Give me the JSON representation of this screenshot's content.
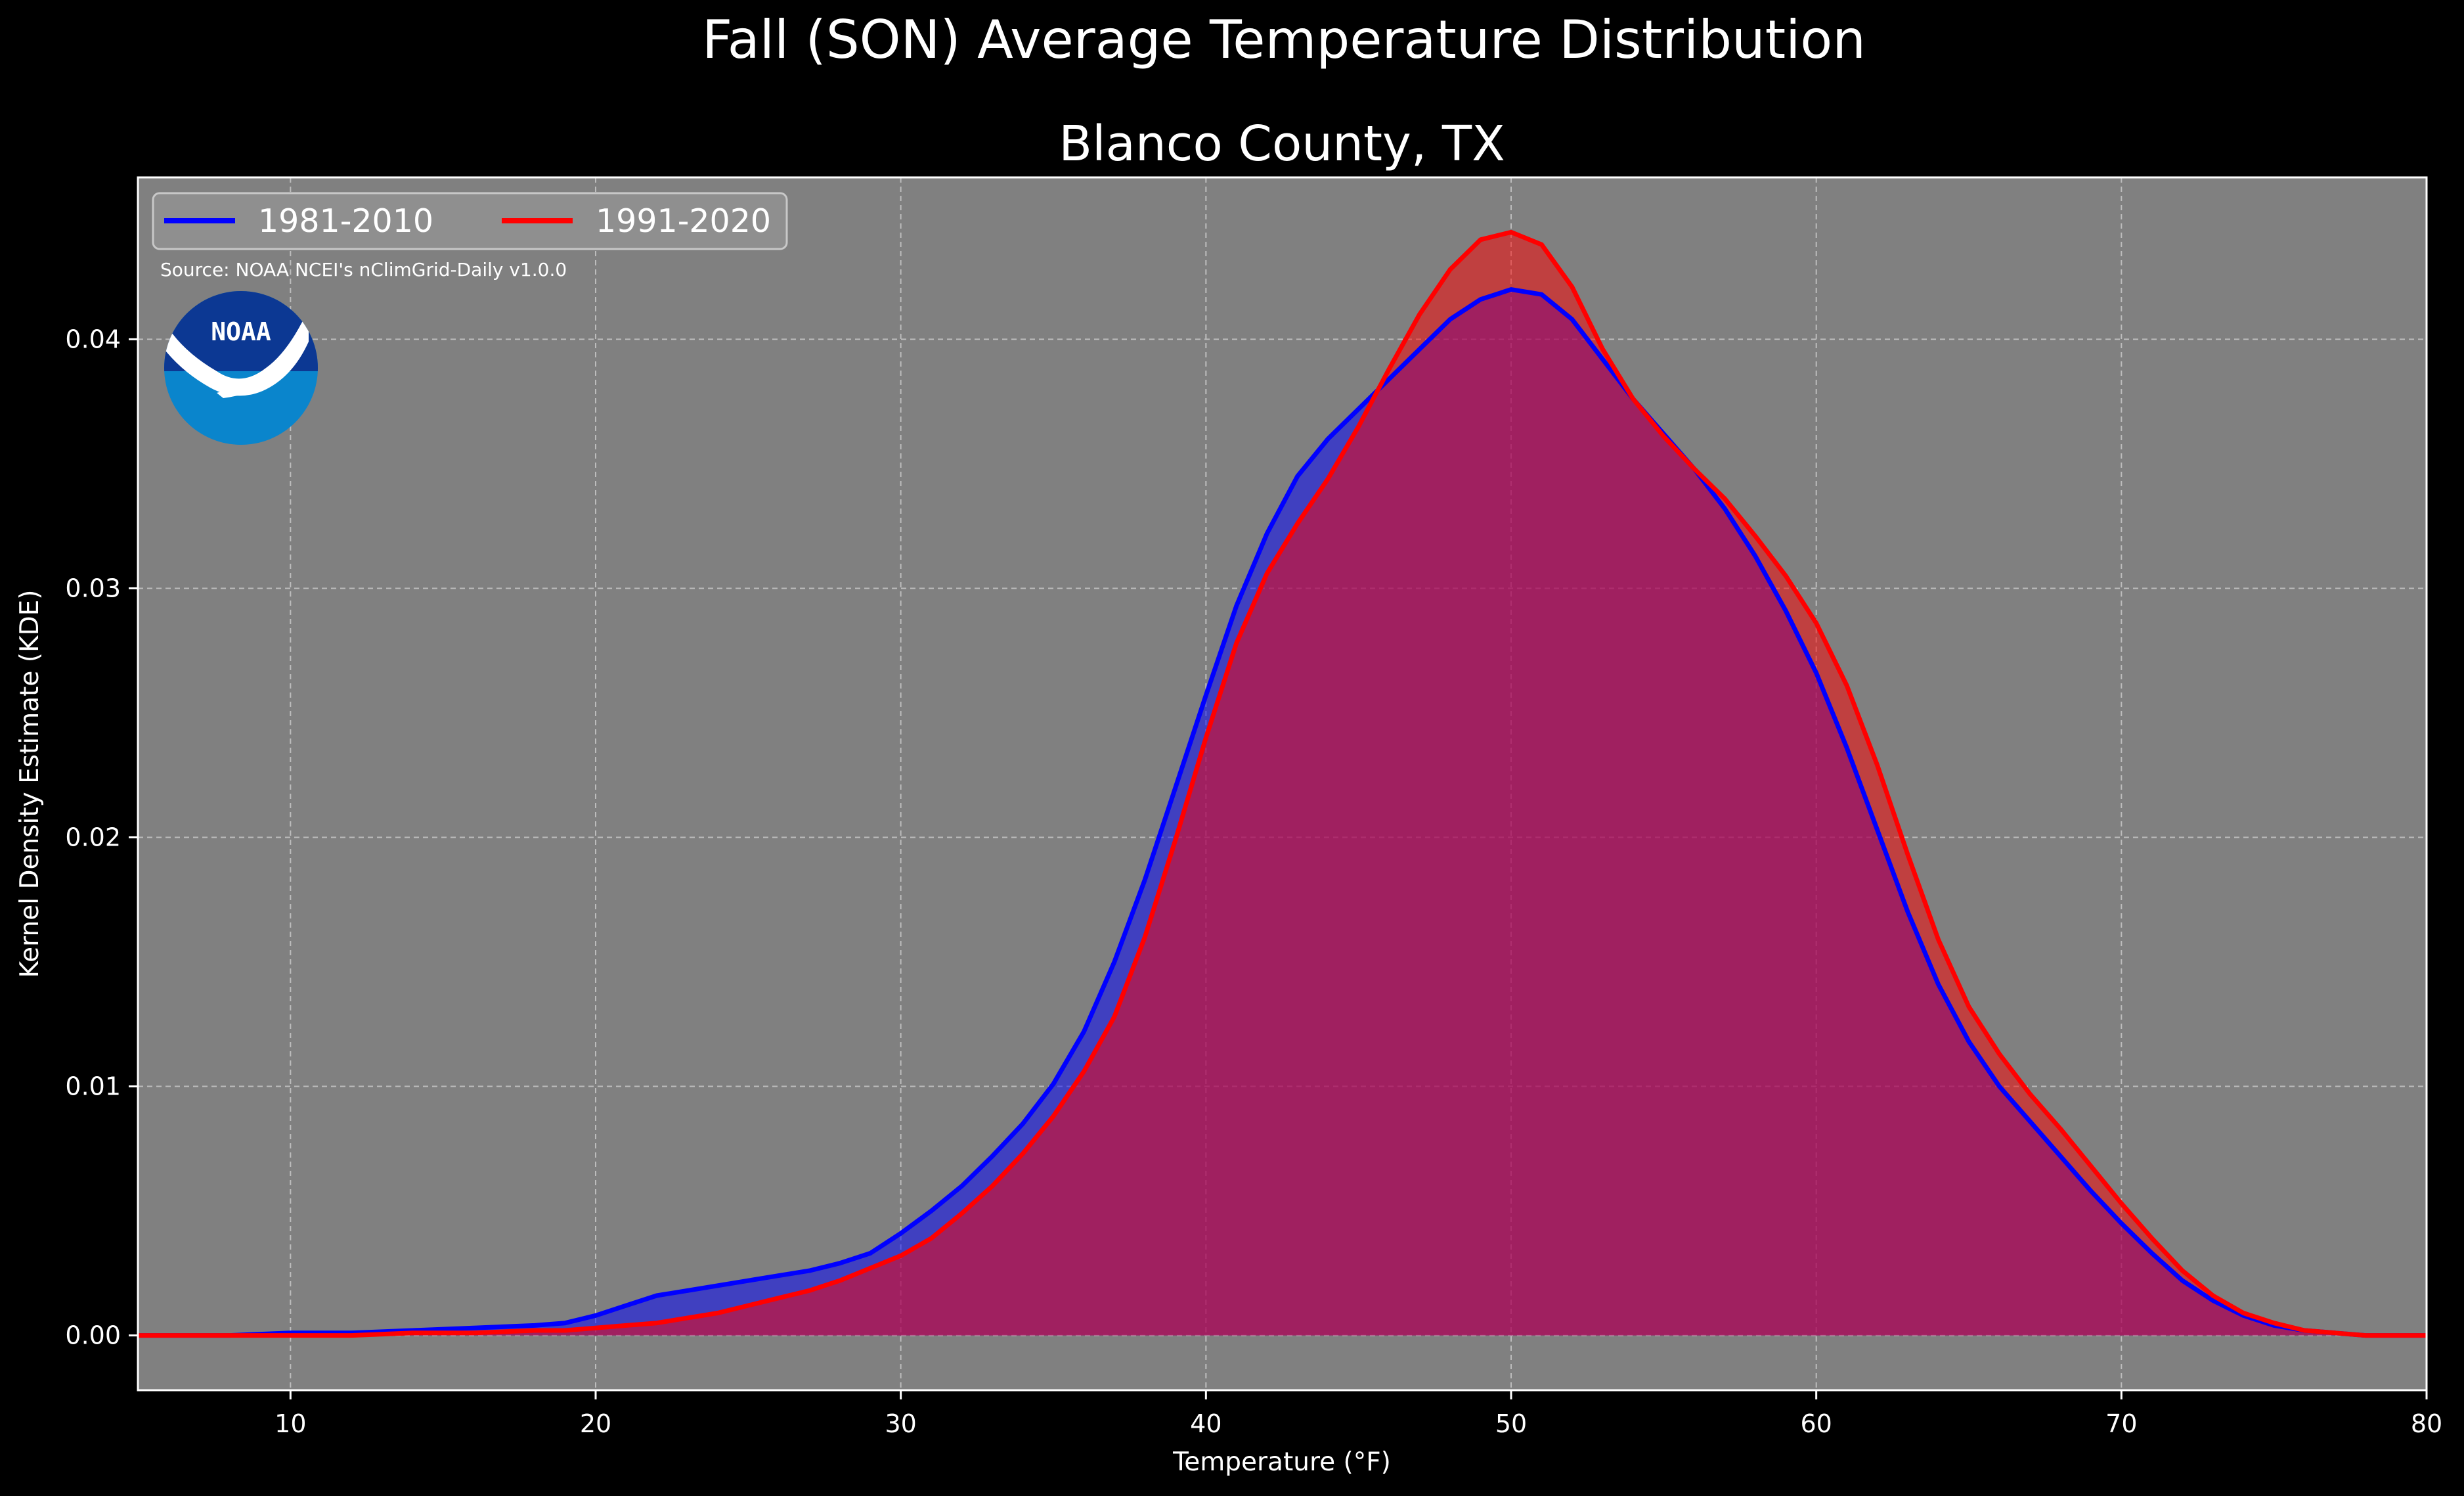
{
  "chart_data": {
    "type": "area",
    "suptitle": "Fall (SON) Average Temperature Distribution",
    "title": "Blanco County, TX",
    "xlabel": "Temperature ($^\\circ$F)",
    "xlabel_display": "Temperature (°F)",
    "ylabel": "Kernel Density Estimate (KDE)",
    "xlim": [
      5,
      80
    ],
    "ylim": [
      -0.0022,
      0.0465
    ],
    "xticks": [
      10,
      20,
      30,
      40,
      50,
      60,
      70,
      80
    ],
    "yticks": [
      0.0,
      0.01,
      0.02,
      0.03,
      0.04
    ],
    "ytick_labels": [
      "0.00",
      "0.01",
      "0.02",
      "0.03",
      "0.04"
    ],
    "grid": true,
    "legend_position": "upper-left",
    "source": "Source: NOAA NCEI's nClimGrid-Daily v1.0.0",
    "logo_text": "NOAA",
    "colors": {
      "figure_bg": "#000000",
      "axes_bg": "#808080",
      "series_1": "#0000ff",
      "series_2": "#ff0000"
    },
    "x": [
      5,
      8,
      10,
      12,
      14,
      16,
      18,
      19,
      20,
      21,
      22,
      23,
      24,
      25,
      26,
      27,
      28,
      29,
      30,
      31,
      32,
      33,
      34,
      35,
      36,
      37,
      38,
      39,
      40,
      41,
      42,
      43,
      44,
      45,
      46,
      47,
      48,
      49,
      50,
      51,
      52,
      53,
      54,
      55,
      56,
      57,
      58,
      59,
      60,
      61,
      62,
      63,
      64,
      65,
      66,
      67,
      68,
      69,
      70,
      71,
      72,
      73,
      74,
      75,
      76,
      77,
      78,
      79,
      80
    ],
    "series": [
      {
        "name": "1981-2010",
        "color": "#0000ff",
        "values": [
          0.0,
          0.0,
          0.0001,
          0.0001,
          0.0002,
          0.0003,
          0.0004,
          0.0005,
          0.0008,
          0.0012,
          0.0016,
          0.0018,
          0.002,
          0.0022,
          0.0024,
          0.0026,
          0.0029,
          0.0033,
          0.0041,
          0.005,
          0.006,
          0.0072,
          0.0085,
          0.0101,
          0.0122,
          0.015,
          0.0183,
          0.022,
          0.0257,
          0.0293,
          0.0322,
          0.0345,
          0.036,
          0.0372,
          0.0384,
          0.0396,
          0.0408,
          0.0416,
          0.042,
          0.0418,
          0.0408,
          0.0392,
          0.0376,
          0.0362,
          0.0348,
          0.0332,
          0.0313,
          0.0291,
          0.0266,
          0.0236,
          0.0203,
          0.017,
          0.0141,
          0.0118,
          0.01,
          0.0086,
          0.0072,
          0.0058,
          0.0045,
          0.0033,
          0.0022,
          0.0014,
          0.0008,
          0.0004,
          0.0002,
          0.0001,
          0.0,
          0.0,
          0.0
        ]
      },
      {
        "name": "1991-2020",
        "color": "#ff0000",
        "values": [
          0.0,
          0.0,
          0.0,
          0.0,
          0.0001,
          0.0001,
          0.0002,
          0.0002,
          0.0003,
          0.0004,
          0.0005,
          0.0007,
          0.0009,
          0.0012,
          0.0015,
          0.0018,
          0.0022,
          0.0027,
          0.0032,
          0.0039,
          0.0049,
          0.006,
          0.0073,
          0.0088,
          0.0106,
          0.0128,
          0.016,
          0.0199,
          0.024,
          0.0278,
          0.0306,
          0.0326,
          0.0344,
          0.0365,
          0.0388,
          0.041,
          0.0428,
          0.044,
          0.0443,
          0.0438,
          0.0421,
          0.0396,
          0.0376,
          0.0361,
          0.0348,
          0.0336,
          0.0321,
          0.0305,
          0.0286,
          0.0261,
          0.0229,
          0.0193,
          0.0159,
          0.0132,
          0.0113,
          0.0097,
          0.0083,
          0.0068,
          0.0053,
          0.0039,
          0.0026,
          0.0016,
          0.0009,
          0.0005,
          0.0002,
          0.0001,
          0.0,
          0.0,
          0.0
        ]
      }
    ]
  }
}
